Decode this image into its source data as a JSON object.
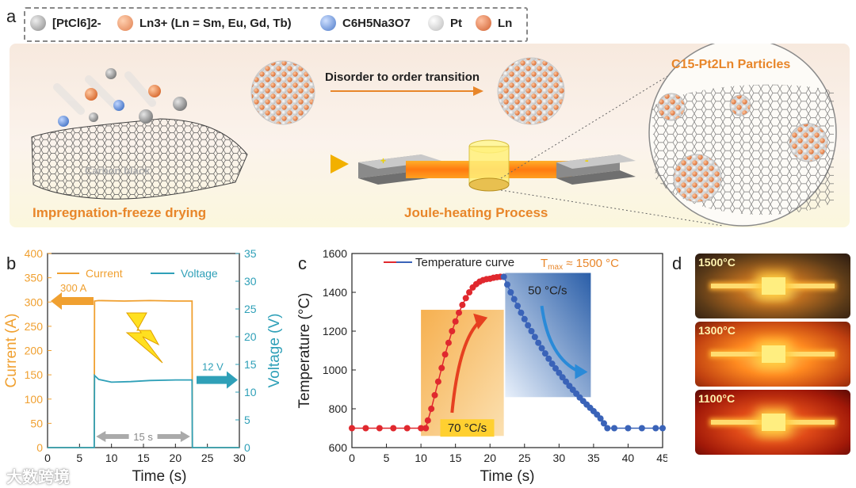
{
  "panel_labels": {
    "a": "a",
    "b": "b",
    "c": "c",
    "d": "d"
  },
  "legend": {
    "items": [
      {
        "label": "[PtCl6]2-",
        "color": "#9a9a9a"
      },
      {
        "label": "Ln3+ (Ln = Sm, Eu, Gd, Tb)",
        "color": "#f0a070"
      },
      {
        "label": "C6H5Na3O7",
        "color": "#6f98d8"
      },
      {
        "label": "Pt",
        "color": "#eeeeee"
      },
      {
        "label": "Ln",
        "color": "#e07a45"
      }
    ]
  },
  "schematic": {
    "substrate_label": "Carbon black",
    "step1_label": "Impregnation-freeze drying",
    "transition_label": "Disorder to order transition",
    "step2_label": "Joule-heating Process",
    "particles_title": "C15-Pt2Ln Particles",
    "electrode_plus": "+",
    "electrode_minus": "-"
  },
  "chart_b": {
    "type": "line",
    "title": "",
    "xlabel": "Time (s)",
    "ylabel_left": "Current (A)",
    "ylabel_right": "Voltage (V)",
    "xlim": [
      0,
      30
    ],
    "ylim_left": [
      0,
      400
    ],
    "ylim_right": [
      0,
      35
    ],
    "x_ticks": [
      "0",
      "5",
      "10",
      "15",
      "20",
      "25",
      "30"
    ],
    "y_ticks_left": [
      "0",
      "50",
      "100",
      "150",
      "200",
      "250",
      "300",
      "350",
      "400"
    ],
    "y_ticks_right": [
      "0",
      "5",
      "10",
      "15",
      "20",
      "25",
      "30",
      "35"
    ],
    "series": [
      {
        "name": "Current",
        "axis": "left",
        "color": "#f0a030",
        "x": [
          0,
          7.3,
          7.35,
          8,
          12,
          16,
          20,
          22.6,
          22.65,
          30
        ],
        "y": [
          0,
          0,
          302,
          303,
          302,
          303,
          302,
          302,
          0,
          0
        ]
      },
      {
        "name": "Voltage",
        "axis": "right",
        "color": "#2fa0b8",
        "x": [
          0,
          7.3,
          7.35,
          8,
          10,
          13,
          16,
          20,
          22.6,
          22.65,
          30
        ],
        "y": [
          0,
          0,
          13,
          12.3,
          11.8,
          11.9,
          12.1,
          12.2,
          12.2,
          0,
          0
        ]
      }
    ],
    "annotations": {
      "current_value": "300 A",
      "voltage_value": "12 V",
      "duration": "15 s"
    },
    "colors": {
      "current": "#f0a030",
      "voltage": "#2fa0b8"
    }
  },
  "chart_c": {
    "type": "scatter",
    "title": "",
    "xlabel": "Time (s)",
    "ylabel": "Temperature (°C)",
    "xlim": [
      0,
      45
    ],
    "ylim": [
      600,
      1600
    ],
    "x_ticks": [
      "0",
      "5",
      "10",
      "15",
      "20",
      "25",
      "30",
      "35",
      "40",
      "45"
    ],
    "y_ticks": [
      "600",
      "800",
      "1000",
      "1200",
      "1400",
      "1600"
    ],
    "legend": "Temperature curve",
    "tmax_label": "T",
    "tmax_sub": "max",
    "tmax_value": " ≈ 1500 °C",
    "heating_rate": "70 °C/s",
    "cooling_rate": "50 °C/s",
    "heating_curve": {
      "x": [
        0,
        2,
        4,
        6,
        8,
        10,
        10.7,
        11,
        11.5,
        12,
        12.5,
        13,
        13.5,
        14,
        14.5,
        15,
        15.5,
        16,
        16.5,
        17,
        17.5,
        18,
        18.5,
        19,
        19.5,
        20,
        20.5,
        21,
        21.5,
        22
      ],
      "y": [
        700,
        700,
        700,
        700,
        700,
        700,
        700,
        740,
        800,
        870,
        940,
        1010,
        1080,
        1140,
        1200,
        1250,
        1295,
        1335,
        1370,
        1400,
        1425,
        1442,
        1455,
        1463,
        1468,
        1470,
        1475,
        1478,
        1480,
        1480
      ]
    },
    "cooling_curve": {
      "x": [
        22,
        22.5,
        23,
        23.5,
        24,
        24.5,
        25,
        25.5,
        26,
        26.5,
        27,
        27.5,
        28,
        28.5,
        29,
        29.5,
        30,
        30.5,
        31,
        31.5,
        32,
        32.5,
        33,
        33.5,
        34,
        34.5,
        35,
        35.5,
        36,
        36.5,
        37,
        38,
        40,
        42,
        44,
        45
      ],
      "y": [
        1480,
        1440,
        1400,
        1365,
        1330,
        1295,
        1262,
        1230,
        1200,
        1170,
        1140,
        1112,
        1085,
        1058,
        1032,
        1008,
        985,
        962,
        940,
        918,
        898,
        878,
        858,
        840,
        822,
        805,
        788,
        770,
        750,
        725,
        700,
        700,
        700,
        700,
        700,
        700
      ]
    },
    "colors": {
      "heating": "#e0282e",
      "cooling": "#3a63b8"
    }
  },
  "photos": [
    {
      "label": "1500°C"
    },
    {
      "label": "1300°C"
    },
    {
      "label": "1100°C"
    }
  ],
  "watermark": "大数跨境"
}
